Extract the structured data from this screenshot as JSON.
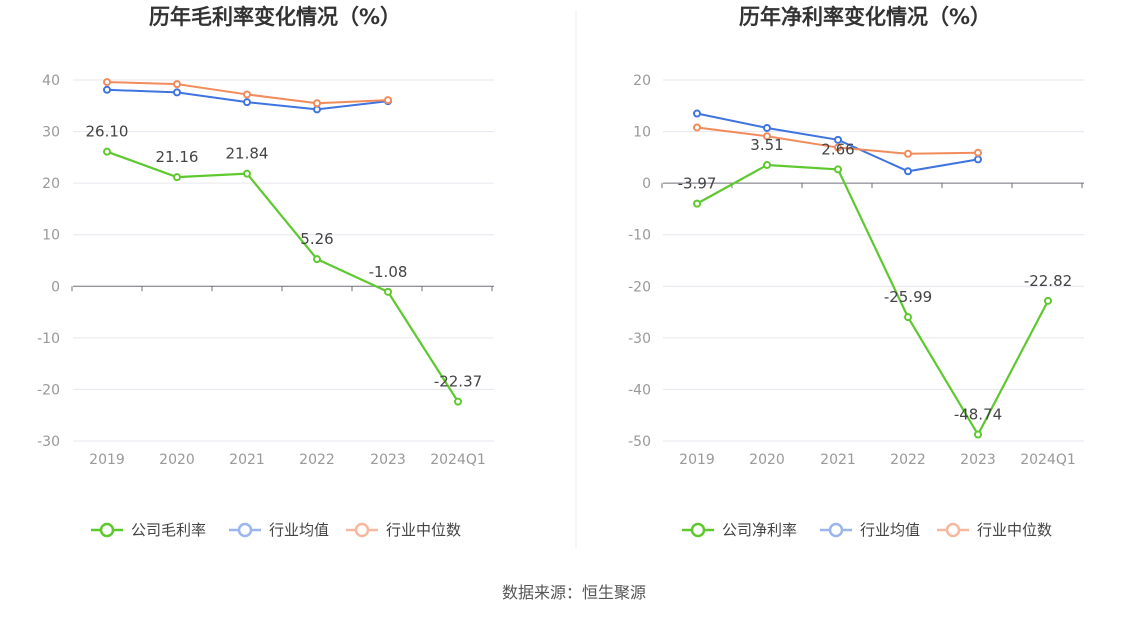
{
  "source": "数据来源：恒生聚源",
  "chart_data": [
    {
      "type": "line",
      "title": "历年毛利率变化情况（%）",
      "categories": [
        "2019",
        "2020",
        "2021",
        "2022",
        "2023",
        "2024Q1"
      ],
      "ylim": [
        -30,
        40
      ],
      "yticks": [
        40,
        30,
        20,
        10,
        0,
        -10,
        -20,
        -30
      ],
      "grid": true,
      "legend_position": "bottom",
      "series": [
        {
          "name": "公司毛利率",
          "color": "#5dc92e",
          "values": [
            26.1,
            21.16,
            21.84,
            5.26,
            -1.08,
            -22.37
          ],
          "labels": [
            "26.10",
            "21.16",
            "21.84",
            "5.26",
            "-1.08",
            "-22.37"
          ]
        },
        {
          "name": "行业均值",
          "color": "#3f74e0",
          "values": [
            38.1,
            37.6,
            35.7,
            34.3,
            35.9,
            null
          ]
        },
        {
          "name": "行业中位数",
          "color": "#f28b5b",
          "values": [
            39.6,
            39.2,
            37.2,
            35.5,
            36.1,
            null
          ]
        }
      ]
    },
    {
      "type": "line",
      "title": "历年净利率变化情况（%）",
      "categories": [
        "2019",
        "2020",
        "2021",
        "2022",
        "2023",
        "2024Q1"
      ],
      "ylim": [
        -50,
        20
      ],
      "yticks": [
        20,
        10,
        0,
        -10,
        -20,
        -30,
        -40,
        -50
      ],
      "grid": true,
      "legend_position": "bottom",
      "series": [
        {
          "name": "公司净利率",
          "color": "#5dc92e",
          "values": [
            -3.97,
            3.51,
            2.66,
            -25.99,
            -48.74,
            -22.82
          ],
          "labels": [
            "-3.97",
            "3.51",
            "2.66",
            "-25.99",
            "-48.74",
            "-22.82"
          ]
        },
        {
          "name": "行业均值",
          "color": "#3f74e0",
          "values": [
            13.5,
            10.7,
            8.4,
            2.3,
            4.6,
            null
          ]
        },
        {
          "name": "行业中位数",
          "color": "#f28b5b",
          "values": [
            10.8,
            9.1,
            6.9,
            5.7,
            5.9,
            null
          ]
        }
      ]
    }
  ]
}
